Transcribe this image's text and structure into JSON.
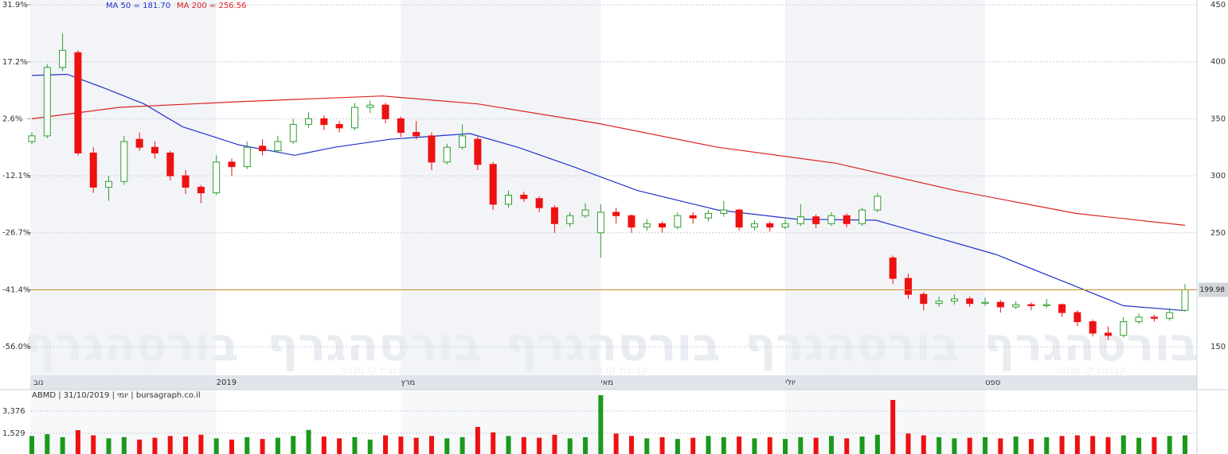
{
  "chart_data": {
    "type": "candlestick",
    "categories": [
      "נוב",
      null,
      null,
      null,
      null,
      null,
      null,
      null,
      null,
      null,
      null,
      null,
      "2019",
      null,
      null,
      null,
      null,
      null,
      null,
      null,
      null,
      null,
      null,
      null,
      "מרץ",
      null,
      null,
      null,
      null,
      null,
      null,
      null,
      null,
      null,
      null,
      null,
      null,
      "מאי",
      null,
      null,
      null,
      null,
      null,
      null,
      null,
      null,
      null,
      null,
      null,
      "יולי",
      null,
      null,
      null,
      null,
      null,
      null,
      null,
      null,
      null,
      null,
      null,
      null,
      "ספט",
      null,
      null,
      null,
      null,
      null,
      null,
      null,
      null,
      null,
      null,
      null,
      null,
      null
    ],
    "ohlc": [
      [
        330,
        338,
        328,
        335
      ],
      [
        335,
        398,
        333,
        395
      ],
      [
        395,
        425,
        392,
        410
      ],
      [
        408,
        410,
        318,
        320
      ],
      [
        320,
        325,
        285,
        290
      ],
      [
        290,
        300,
        278,
        295
      ],
      [
        295,
        335,
        292,
        330
      ],
      [
        332,
        338,
        322,
        325
      ],
      [
        325,
        330,
        315,
        320
      ],
      [
        320,
        322,
        296,
        300
      ],
      [
        300,
        305,
        284,
        290
      ],
      [
        290,
        292,
        276,
        285
      ],
      [
        285,
        318,
        283,
        312
      ],
      [
        312,
        315,
        300,
        308
      ],
      [
        308,
        330,
        306,
        325
      ],
      [
        326,
        332,
        318,
        322
      ],
      [
        322,
        335,
        320,
        330
      ],
      [
        330,
        350,
        328,
        345
      ],
      [
        345,
        356,
        342,
        350
      ],
      [
        350,
        353,
        340,
        345
      ],
      [
        345,
        348,
        338,
        342
      ],
      [
        342,
        364,
        340,
        360
      ],
      [
        360,
        366,
        355,
        362
      ],
      [
        362,
        364,
        346,
        350
      ],
      [
        350,
        352,
        334,
        338
      ],
      [
        338,
        348,
        332,
        335
      ],
      [
        335,
        338,
        305,
        312
      ],
      [
        312,
        328,
        310,
        325
      ],
      [
        325,
        345,
        323,
        335
      ],
      [
        332,
        335,
        305,
        310
      ],
      [
        310,
        312,
        270,
        275
      ],
      [
        275,
        287,
        272,
        283
      ],
      [
        283,
        286,
        277,
        280
      ],
      [
        280,
        282,
        268,
        272
      ],
      [
        272,
        274,
        250,
        258
      ],
      [
        258,
        268,
        255,
        265
      ],
      [
        265,
        276,
        263,
        270
      ],
      [
        250,
        275,
        228,
        268
      ],
      [
        268,
        272,
        258,
        265
      ],
      [
        265,
        266,
        250,
        255
      ],
      [
        255,
        262,
        252,
        258
      ],
      [
        258,
        260,
        250,
        255
      ],
      [
        255,
        268,
        253,
        265
      ],
      [
        265,
        268,
        258,
        263
      ],
      [
        263,
        270,
        260,
        267
      ],
      [
        267,
        278,
        264,
        270
      ],
      [
        270,
        271,
        252,
        255
      ],
      [
        255,
        261,
        252,
        258
      ],
      [
        258,
        260,
        251,
        255
      ],
      [
        255,
        262,
        253,
        258
      ],
      [
        258,
        275,
        256,
        264
      ],
      [
        264,
        266,
        254,
        258
      ],
      [
        258,
        268,
        256,
        265
      ],
      [
        265,
        267,
        255,
        258
      ],
      [
        258,
        272,
        256,
        270
      ],
      [
        270,
        285,
        268,
        282
      ],
      [
        228,
        230,
        205,
        210
      ],
      [
        210,
        214,
        192,
        196
      ],
      [
        196,
        198,
        182,
        188
      ],
      [
        188,
        194,
        185,
        190
      ],
      [
        190,
        196,
        187,
        192
      ],
      [
        192,
        194,
        185,
        188
      ],
      [
        188,
        193,
        186,
        189
      ],
      [
        189,
        191,
        180,
        185
      ],
      [
        185,
        190,
        183,
        187
      ],
      [
        187,
        189,
        182,
        186
      ],
      [
        186,
        192,
        184,
        187
      ],
      [
        187,
        188,
        176,
        180
      ],
      [
        180,
        182,
        168,
        172
      ],
      [
        172,
        174,
        159,
        162
      ],
      [
        162,
        168,
        156,
        160
      ],
      [
        160,
        176,
        158,
        172
      ],
      [
        172,
        179,
        170,
        176
      ],
      [
        176,
        178,
        172,
        175
      ],
      [
        175,
        184,
        173,
        180
      ],
      [
        182,
        205,
        181,
        199.98
      ]
    ],
    "up_color": "#2e9e2e",
    "down_color": "#ee1111",
    "series": [
      {
        "name": "MA 50 = 181.70",
        "color": "#2233cc",
        "x": [
          0,
          2.3,
          4.7,
          7.3,
          9.8,
          13.5,
          17.1,
          19.7,
          23.3,
          28.5,
          31.6,
          35.2,
          39.4,
          44.6,
          49.7,
          54.9,
          57.5,
          62.7,
          67.9,
          71,
          75
        ],
        "values": [
          388,
          389,
          377,
          363,
          343,
          327,
          318,
          325,
          332,
          337,
          325,
          308,
          287,
          270,
          262,
          261,
          251,
          231,
          203,
          186,
          181.7
        ]
      },
      {
        "name": "MA 200 = 256.56",
        "color": "#dd2222",
        "x": [
          0,
          5.7,
          13.5,
          22.8,
          29,
          36.8,
          44.6,
          52.3,
          60.1,
          67.9,
          75
        ],
        "values": [
          350,
          360,
          365,
          370,
          363,
          346,
          325,
          311,
          287,
          267,
          256.56
        ]
      }
    ],
    "ylim": [
      125,
      450
    ],
    "yticks": [
      150,
      200,
      250,
      300,
      350,
      400,
      450
    ],
    "y2lim": [
      -63.4,
      31.9
    ],
    "y2ticks": [
      {
        "value": 31.9,
        "label": "31.9%"
      },
      {
        "value": 17.2,
        "label": "17.2%"
      },
      {
        "value": 2.6,
        "label": "2.6%"
      },
      {
        "value": -12.1,
        "label": "-12.1%"
      },
      {
        "value": -26.7,
        "label": "-26.7%"
      },
      {
        "value": -41.4,
        "label": "-41.4%"
      },
      {
        "value": -56.0,
        "label": "-56.0%"
      }
    ],
    "grid": true,
    "last_price_color": "#d08a2a",
    "watermark": "בורסהגרף",
    "watermark_sub": "קבוצת קו מנחה",
    "volume_title": "ABMD | 31/10/2019 | יומי | bursagraph.co.il",
    "volume": [
      1300,
      1450,
      1200,
      1780,
      1350,
      1100,
      1200,
      1000,
      1150,
      1300,
      1250,
      1400,
      1100,
      1000,
      1200,
      1050,
      1150,
      1300,
      1800,
      1250,
      1100,
      1200,
      1000,
      1350,
      1250,
      1150,
      1300,
      1100,
      1200,
      2050,
      1600,
      1300,
      1200,
      1150,
      1400,
      1100,
      1200,
      4690,
      1500,
      1300,
      1100,
      1200,
      1050,
      1150,
      1300,
      1200,
      1250,
      1100,
      1200,
      1050,
      1200,
      1150,
      1300,
      1100,
      1250,
      1400,
      4290,
      1500,
      1350,
      1200,
      1100,
      1150,
      1200,
      1100,
      1250,
      1050,
      1200,
      1300,
      1350,
      1300,
      1200,
      1350,
      1150,
      1200,
      1300,
      1350
    ],
    "vlim": [
      0,
      5150
    ],
    "vticks": [
      {
        "value": 1529,
        "label": "1,529"
      },
      {
        "value": 3376,
        "label": "3,376"
      }
    ]
  }
}
